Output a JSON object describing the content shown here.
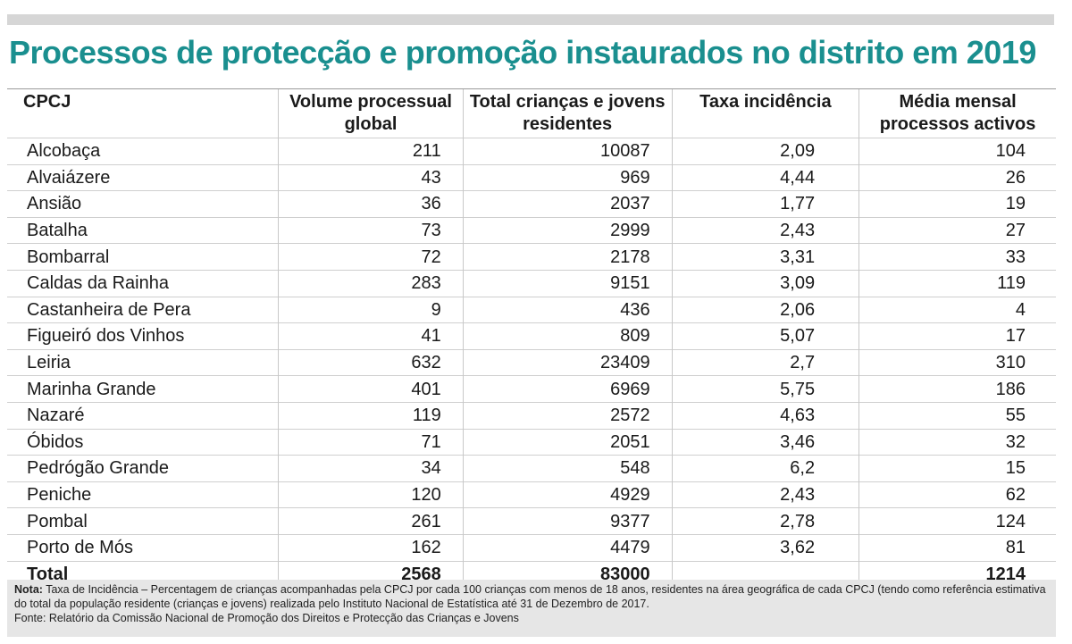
{
  "chart_data": {
    "type": "table",
    "title": "Processos de protecção e promoção instaurados no distrito em 2019",
    "columns": [
      "CPCJ",
      "Volume processual global",
      "Total crianças e jovens residentes",
      "Taxa incidência",
      "Média mensal processos activos"
    ],
    "rows": [
      [
        "Alcobaça",
        "211",
        "10087",
        "2,09",
        "104"
      ],
      [
        "Alvaiázere",
        "43",
        "969",
        "4,44",
        "26"
      ],
      [
        "Ansião",
        "36",
        "2037",
        "1,77",
        "19"
      ],
      [
        "Batalha",
        "73",
        "2999",
        "2,43",
        "27"
      ],
      [
        "Bombarral",
        "72",
        "2178",
        "3,31",
        "33"
      ],
      [
        "Caldas da Rainha",
        "283",
        "9151",
        "3,09",
        "119"
      ],
      [
        "Castanheira de Pera",
        "9",
        "436",
        "2,06",
        "4"
      ],
      [
        "Figueiró dos Vinhos",
        "41",
        "809",
        "5,07",
        "17"
      ],
      [
        "Leiria",
        "632",
        "23409",
        "2,7",
        "310"
      ],
      [
        "Marinha Grande",
        "401",
        "6969",
        "5,75",
        "186"
      ],
      [
        "Nazaré",
        "119",
        "2572",
        "4,63",
        "55"
      ],
      [
        "Óbidos",
        "71",
        "2051",
        "3,46",
        "32"
      ],
      [
        "Pedrógão Grande",
        "34",
        "548",
        "6,2",
        "15"
      ],
      [
        "Peniche",
        "120",
        "4929",
        "2,43",
        "62"
      ],
      [
        "Pombal",
        "261",
        "9377",
        "2,78",
        "124"
      ],
      [
        "Porto de Mós",
        "162",
        "4479",
        "3,62",
        "81"
      ]
    ],
    "total": [
      "Total",
      "2568",
      "83000",
      "",
      "1214"
    ]
  },
  "notes": {
    "nota_label": "Nota:",
    "nota_text": " Taxa de Incidência – Percentagem de crianças acompanhadas pela CPCJ por cada 100 crianças com menos de 18 anos, residentes na área geográfica de cada CPCJ (tendo como referência estimativa do total da população residente (crianças e jovens) realizada pelo Instituto Nacional de Estatística até 31 de Dezembro de 2017.",
    "fonte": "Fonte: Relatório da Comissão Nacional de Promoção dos Direitos e Protecção das Crianças e Jovens"
  },
  "colors": {
    "title": "#1a8f8f",
    "notes_background": "#e6e6e6",
    "top_bar": "#d6d6d6"
  }
}
